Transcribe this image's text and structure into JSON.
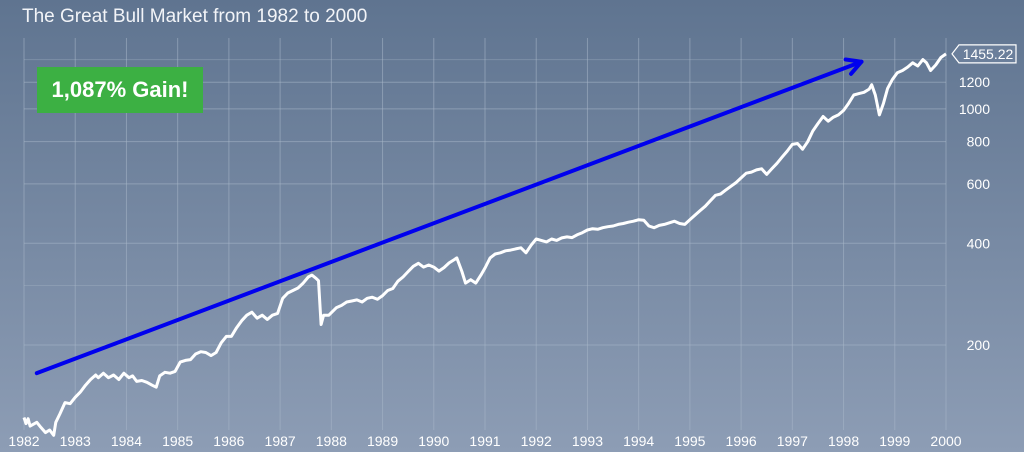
{
  "chart_data": {
    "type": "line",
    "title": "The Great Bull Market from 1982 to 2000",
    "xlabel": "",
    "ylabel": "",
    "x_range": [
      1982.0,
      2000.0
    ],
    "y_scale": "log",
    "y_range": [
      112,
      1600
    ],
    "y_ticks": [
      200,
      400,
      600,
      800,
      1000,
      1200
    ],
    "x_ticks": [
      "1982",
      "1983",
      "1984",
      "1985",
      "1986",
      "1987",
      "1988",
      "1989",
      "1990",
      "1991",
      "1992",
      "1993",
      "1994",
      "1995",
      "1996",
      "1997",
      "1998",
      "1999",
      "2000"
    ],
    "grid": true,
    "last_value_label": "1455.22",
    "annotation": "1,087% Gain!",
    "colors": {
      "line": "#ffffff",
      "trend_arrow": "#0000ee",
      "badge": "#3cb043",
      "grid": "#a8b6c8"
    },
    "series": [
      {
        "points": [
          [
            1982.0,
            122
          ],
          [
            1982.04,
            117
          ],
          [
            1982.08,
            121
          ],
          [
            1982.12,
            115
          ],
          [
            1982.25,
            118
          ],
          [
            1982.33,
            114
          ],
          [
            1982.42,
            110
          ],
          [
            1982.5,
            112
          ],
          [
            1982.58,
            108
          ],
          [
            1982.62,
            118
          ],
          [
            1982.7,
            125
          ],
          [
            1982.8,
            135
          ],
          [
            1982.9,
            134
          ],
          [
            1983.0,
            140
          ],
          [
            1983.1,
            145
          ],
          [
            1983.2,
            152
          ],
          [
            1983.3,
            158
          ],
          [
            1983.4,
            163
          ],
          [
            1983.45,
            160
          ],
          [
            1983.55,
            165
          ],
          [
            1983.65,
            160
          ],
          [
            1983.75,
            163
          ],
          [
            1983.85,
            158
          ],
          [
            1983.95,
            165
          ],
          [
            1984.05,
            160
          ],
          [
            1984.12,
            162
          ],
          [
            1984.2,
            156
          ],
          [
            1984.3,
            157
          ],
          [
            1984.4,
            155
          ],
          [
            1984.5,
            152
          ],
          [
            1984.58,
            150
          ],
          [
            1984.65,
            162
          ],
          [
            1984.75,
            166
          ],
          [
            1984.85,
            165
          ],
          [
            1984.95,
            167
          ],
          [
            1985.05,
            178
          ],
          [
            1985.15,
            180
          ],
          [
            1985.25,
            181
          ],
          [
            1985.35,
            188
          ],
          [
            1985.45,
            191
          ],
          [
            1985.55,
            190
          ],
          [
            1985.65,
            186
          ],
          [
            1985.75,
            190
          ],
          [
            1985.85,
            203
          ],
          [
            1985.95,
            212
          ],
          [
            1986.05,
            212
          ],
          [
            1986.15,
            225
          ],
          [
            1986.25,
            236
          ],
          [
            1986.35,
            245
          ],
          [
            1986.45,
            250
          ],
          [
            1986.55,
            240
          ],
          [
            1986.65,
            245
          ],
          [
            1986.75,
            238
          ],
          [
            1986.85,
            245
          ],
          [
            1986.95,
            248
          ],
          [
            1987.05,
            275
          ],
          [
            1987.15,
            285
          ],
          [
            1987.25,
            290
          ],
          [
            1987.35,
            295
          ],
          [
            1987.45,
            305
          ],
          [
            1987.55,
            318
          ],
          [
            1987.62,
            322
          ],
          [
            1987.7,
            315
          ],
          [
            1987.75,
            310
          ],
          [
            1987.8,
            230
          ],
          [
            1987.85,
            245
          ],
          [
            1987.95,
            245
          ],
          [
            1988.1,
            258
          ],
          [
            1988.2,
            262
          ],
          [
            1988.3,
            268
          ],
          [
            1988.4,
            270
          ],
          [
            1988.5,
            272
          ],
          [
            1988.6,
            268
          ],
          [
            1988.7,
            275
          ],
          [
            1988.8,
            277
          ],
          [
            1988.9,
            273
          ],
          [
            1989.0,
            280
          ],
          [
            1989.1,
            290
          ],
          [
            1989.2,
            294
          ],
          [
            1989.3,
            309
          ],
          [
            1989.4,
            318
          ],
          [
            1989.5,
            330
          ],
          [
            1989.6,
            342
          ],
          [
            1989.7,
            349
          ],
          [
            1989.8,
            340
          ],
          [
            1989.9,
            345
          ],
          [
            1990.0,
            340
          ],
          [
            1990.1,
            331
          ],
          [
            1990.2,
            339
          ],
          [
            1990.3,
            350
          ],
          [
            1990.4,
            358
          ],
          [
            1990.45,
            362
          ],
          [
            1990.55,
            330
          ],
          [
            1990.62,
            305
          ],
          [
            1990.72,
            312
          ],
          [
            1990.82,
            305
          ],
          [
            1990.92,
            322
          ],
          [
            1991.0,
            338
          ],
          [
            1991.1,
            362
          ],
          [
            1991.2,
            372
          ],
          [
            1991.3,
            375
          ],
          [
            1991.4,
            380
          ],
          [
            1991.5,
            382
          ],
          [
            1991.6,
            385
          ],
          [
            1991.7,
            388
          ],
          [
            1991.8,
            375
          ],
          [
            1991.9,
            395
          ],
          [
            1992.0,
            412
          ],
          [
            1992.1,
            408
          ],
          [
            1992.2,
            404
          ],
          [
            1992.3,
            412
          ],
          [
            1992.4,
            408
          ],
          [
            1992.5,
            415
          ],
          [
            1992.6,
            418
          ],
          [
            1992.7,
            416
          ],
          [
            1992.8,
            424
          ],
          [
            1992.9,
            430
          ],
          [
            1993.0,
            438
          ],
          [
            1993.1,
            442
          ],
          [
            1993.2,
            440
          ],
          [
            1993.3,
            445
          ],
          [
            1993.4,
            448
          ],
          [
            1993.5,
            450
          ],
          [
            1993.6,
            455
          ],
          [
            1993.7,
            458
          ],
          [
            1993.8,
            462
          ],
          [
            1993.9,
            465
          ],
          [
            1994.0,
            470
          ],
          [
            1994.1,
            468
          ],
          [
            1994.2,
            450
          ],
          [
            1994.3,
            445
          ],
          [
            1994.4,
            452
          ],
          [
            1994.5,
            455
          ],
          [
            1994.6,
            460
          ],
          [
            1994.7,
            465
          ],
          [
            1994.8,
            458
          ],
          [
            1994.9,
            455
          ],
          [
            1995.0,
            470
          ],
          [
            1995.1,
            485
          ],
          [
            1995.2,
            500
          ],
          [
            1995.3,
            515
          ],
          [
            1995.4,
            535
          ],
          [
            1995.5,
            555
          ],
          [
            1995.6,
            560
          ],
          [
            1995.7,
            575
          ],
          [
            1995.8,
            590
          ],
          [
            1995.9,
            605
          ],
          [
            1996.0,
            625
          ],
          [
            1996.1,
            645
          ],
          [
            1996.2,
            650
          ],
          [
            1996.3,
            660
          ],
          [
            1996.4,
            665
          ],
          [
            1996.5,
            640
          ],
          [
            1996.6,
            665
          ],
          [
            1996.7,
            690
          ],
          [
            1996.8,
            720
          ],
          [
            1996.9,
            750
          ],
          [
            1997.0,
            785
          ],
          [
            1997.1,
            790
          ],
          [
            1997.2,
            760
          ],
          [
            1997.3,
            800
          ],
          [
            1997.4,
            860
          ],
          [
            1997.5,
            905
          ],
          [
            1997.6,
            950
          ],
          [
            1997.7,
            920
          ],
          [
            1997.8,
            945
          ],
          [
            1997.9,
            960
          ],
          [
            1998.0,
            990
          ],
          [
            1998.1,
            1040
          ],
          [
            1998.2,
            1100
          ],
          [
            1998.3,
            1110
          ],
          [
            1998.4,
            1120
          ],
          [
            1998.5,
            1145
          ],
          [
            1998.55,
            1180
          ],
          [
            1998.62,
            1100
          ],
          [
            1998.7,
            960
          ],
          [
            1998.78,
            1040
          ],
          [
            1998.86,
            1150
          ],
          [
            1998.95,
            1220
          ],
          [
            1999.05,
            1280
          ],
          [
            1999.15,
            1300
          ],
          [
            1999.25,
            1330
          ],
          [
            1999.35,
            1370
          ],
          [
            1999.45,
            1340
          ],
          [
            1999.55,
            1400
          ],
          [
            1999.62,
            1370
          ],
          [
            1999.7,
            1300
          ],
          [
            1999.8,
            1350
          ],
          [
            1999.9,
            1420
          ],
          [
            2000.0,
            1455.22
          ]
        ]
      }
    ],
    "trend_arrow": {
      "from": [
        1982.25,
        165
      ],
      "to": [
        1998.35,
        1380
      ]
    }
  }
}
